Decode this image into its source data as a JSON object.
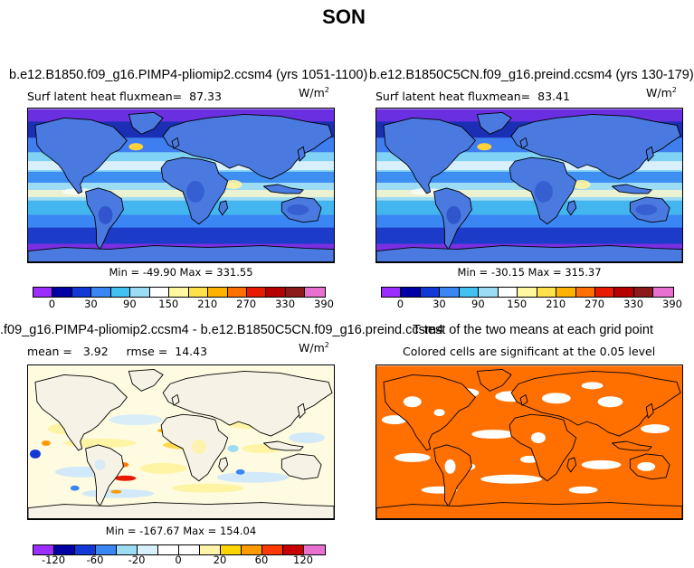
{
  "page": {
    "title": "SON"
  },
  "chart_data": [
    {
      "type": "heatmap",
      "title": "b.e12.B1850.f09_g16.PIMP4-pliomip2.ccsm4 (yrs 1051-1100)",
      "subtitle": "Surf latent heat flux",
      "mean_label": "mean=",
      "mean": "87.33",
      "units": "W/m",
      "units_exp": "2",
      "min_label": "Min =",
      "min": "-49.90",
      "max_label": "Max =",
      "max": "331.55",
      "colorbar_ticks": [
        "0",
        "30",
        "90",
        "150",
        "210",
        "270",
        "330",
        "390"
      ],
      "colorbar_colors": [
        "#9c2dff",
        "#0000a4",
        "#1338d8",
        "#3a86f5",
        "#43c1f0",
        "#9cdcf5",
        "#ffffff",
        "#fff8a0",
        "#ffe24a",
        "#ffb300",
        "#ff7000",
        "#e81a00",
        "#b40000",
        "#8c1a1a",
        "#e870d0"
      ]
    },
    {
      "type": "heatmap",
      "title": "b.e12.B1850C5CN.f09_g16.preind.ccsm4 (yrs 130-179)",
      "subtitle": "Surf latent heat flux",
      "mean_label": "mean=",
      "mean": "83.41",
      "units": "W/m",
      "units_exp": "2",
      "min_label": "Min =",
      "min": "-30.15",
      "max_label": "Max =",
      "max": "315.37",
      "colorbar_ticks": [
        "0",
        "30",
        "90",
        "150",
        "210",
        "270",
        "330",
        "390"
      ],
      "colorbar_colors": [
        "#9c2dff",
        "#0000a4",
        "#1338d8",
        "#3a86f5",
        "#43c1f0",
        "#9cdcf5",
        "#ffffff",
        "#fff8a0",
        "#ffe24a",
        "#ffb300",
        "#ff7000",
        "#e81a00",
        "#b40000",
        "#8c1a1a",
        "#e870d0"
      ]
    },
    {
      "type": "heatmap",
      "title": ".f09_g16.PIMP4-pliomip2.ccsm4 - b.e12.B1850C5CN.f09_g16.preind.ccsm4",
      "mean_label": "mean =",
      "mean": "3.92",
      "rmse_label": "rmse =",
      "rmse": "14.43",
      "units": "W/m",
      "units_exp": "2",
      "min_label": "Min =",
      "min": "-167.67",
      "max_label": "Max =",
      "max": "154.04",
      "colorbar_ticks": [
        "-120",
        "-60",
        "-20",
        "0",
        "20",
        "60",
        "120"
      ],
      "colorbar_colors": [
        "#9c2dff",
        "#0000a4",
        "#1338d8",
        "#3a86f5",
        "#9cdcf5",
        "#d8f0fa",
        "#ffffff",
        "#ffffff",
        "#fff4a8",
        "#ffd400",
        "#ff9a00",
        "#ff3a00",
        "#c80000",
        "#e870d0"
      ]
    },
    {
      "type": "heatmap",
      "title": "T-test of the two means at each grid point",
      "subtitle": "Colored cells are significant at the 0.05 level",
      "significant_color": "#ff7000"
    }
  ]
}
